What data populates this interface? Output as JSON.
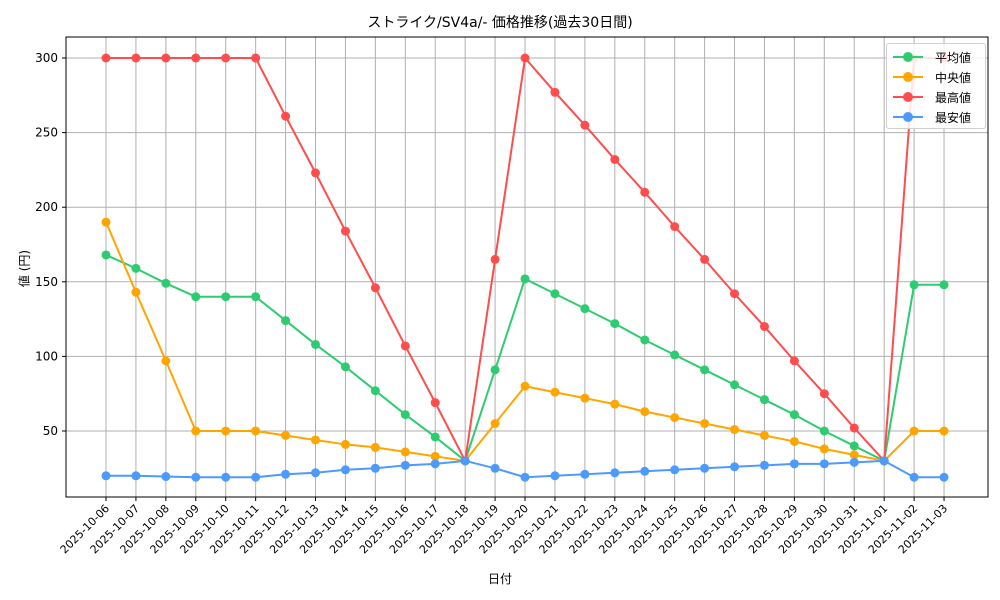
{
  "chart_data": {
    "type": "line",
    "title": "ストライク/SV4a/- 価格推移(過去30日間)",
    "xlabel": "日付",
    "ylabel": "値 (円)",
    "ylim": [
      5,
      315
    ],
    "yticks": [
      50,
      100,
      150,
      200,
      250,
      300
    ],
    "grid": true,
    "legend_position": "upper right",
    "categories": [
      "2025-10-06",
      "2025-10-07",
      "2025-10-08",
      "2025-10-09",
      "2025-10-10",
      "2025-10-11",
      "2025-10-12",
      "2025-10-13",
      "2025-10-14",
      "2025-10-15",
      "2025-10-16",
      "2025-10-17",
      "2025-10-18",
      "2025-10-19",
      "2025-10-20",
      "2025-10-21",
      "2025-10-22",
      "2025-10-23",
      "2025-10-24",
      "2025-10-25",
      "2025-10-26",
      "2025-10-27",
      "2025-10-28",
      "2025-10-29",
      "2025-10-30",
      "2025-10-31",
      "2025-11-01",
      "2025-11-02",
      "2025-11-03"
    ],
    "series": [
      {
        "name": "平均値",
        "color": "#2ecc71",
        "values": [
          168,
          159,
          149,
          140,
          140,
          140,
          124,
          108,
          93,
          77,
          61,
          46,
          30,
          91,
          152,
          142,
          132,
          122,
          111,
          101,
          91,
          81,
          71,
          61,
          50,
          40,
          30,
          148,
          148
        ]
      },
      {
        "name": "中央値",
        "color": "#ffa500",
        "values": [
          190,
          143,
          97,
          50,
          50,
          50,
          47,
          44,
          41,
          39,
          36,
          33,
          30,
          55,
          80,
          76,
          72,
          68,
          63,
          59,
          55,
          51,
          47,
          43,
          38,
          34,
          30,
          50,
          50
        ]
      },
      {
        "name": "最高値",
        "color": "#ff4d4d",
        "values": [
          300,
          300,
          300,
          300,
          300,
          300,
          261,
          223,
          184,
          146,
          107,
          69,
          30,
          165,
          300,
          277,
          255,
          232,
          210,
          187,
          165,
          142,
          120,
          97,
          75,
          52,
          30,
          300,
          300
        ]
      },
      {
        "name": "最安値",
        "color": "#4d9aff",
        "values": [
          20,
          20,
          19.5,
          19,
          19,
          19,
          21,
          22,
          24,
          25,
          27,
          28,
          30,
          25,
          19,
          20,
          21,
          22,
          23,
          24,
          25,
          26,
          27,
          28,
          28,
          29,
          30,
          19,
          19
        ]
      }
    ]
  },
  "legend": {
    "items": [
      {
        "label": "平均値",
        "color": "#2ecc71"
      },
      {
        "label": "中央値",
        "color": "#ffa500"
      },
      {
        "label": "最高値",
        "color": "#ff4d4d"
      },
      {
        "label": "最安値",
        "color": "#4d9aff"
      }
    ]
  },
  "style": {
    "axis_color": "#000000",
    "grid_color": "#b0b0b0",
    "background": "#ffffff"
  }
}
